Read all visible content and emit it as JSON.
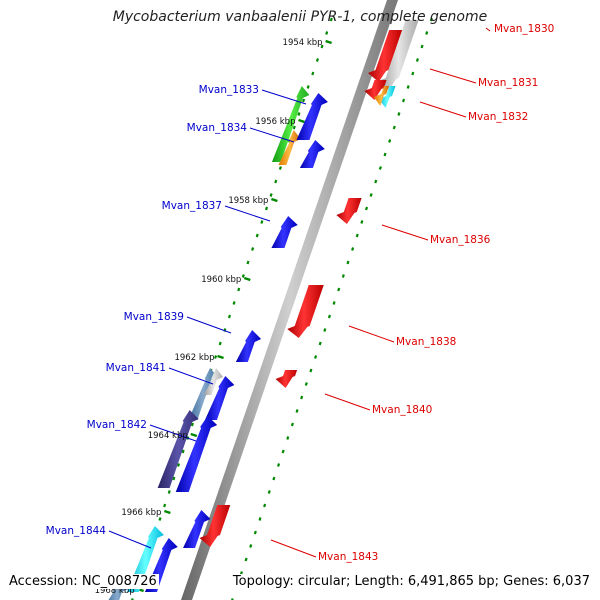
{
  "map": {
    "title": "Mycobacterium vanbaalenii PYR-1, complete genome",
    "accession": "Accession: NC_008726",
    "summary": "Topology: circular; Length: 6,491,865 bp; Genes: 6,037",
    "colors": {
      "forward_gene": "#0000ee",
      "reverse_gene": "#ee0000",
      "forward_label": "#0000cc",
      "reverse_label": "#dd0000",
      "tick": "#008800",
      "backbone": "#888888"
    },
    "scale_ticks": [
      {
        "label": "1954 kbp"
      },
      {
        "label": "1956 kbp"
      },
      {
        "label": "1958 kbp"
      },
      {
        "label": "1960 kbp"
      },
      {
        "label": "1962 kbp"
      },
      {
        "label": "1964 kbp"
      },
      {
        "label": "1966 kbp"
      },
      {
        "label": "1968 kbp"
      }
    ],
    "genes": [
      {
        "name": "Mvan_1830",
        "strand": "reverse"
      },
      {
        "name": "Mvan_1831",
        "strand": "reverse"
      },
      {
        "name": "Mvan_1832",
        "strand": "reverse"
      },
      {
        "name": "Mvan_1833",
        "strand": "forward"
      },
      {
        "name": "Mvan_1834",
        "strand": "forward"
      },
      {
        "name": "Mvan_1836",
        "strand": "reverse"
      },
      {
        "name": "Mvan_1837",
        "strand": "forward"
      },
      {
        "name": "Mvan_1838",
        "strand": "reverse"
      },
      {
        "name": "Mvan_1839",
        "strand": "forward"
      },
      {
        "name": "Mvan_1840",
        "strand": "reverse"
      },
      {
        "name": "Mvan_1841",
        "strand": "forward"
      },
      {
        "name": "Mvan_1842",
        "strand": "forward"
      },
      {
        "name": "Mvan_1843",
        "strand": "reverse"
      },
      {
        "name": "Mvan_1844",
        "strand": "forward"
      }
    ]
  }
}
